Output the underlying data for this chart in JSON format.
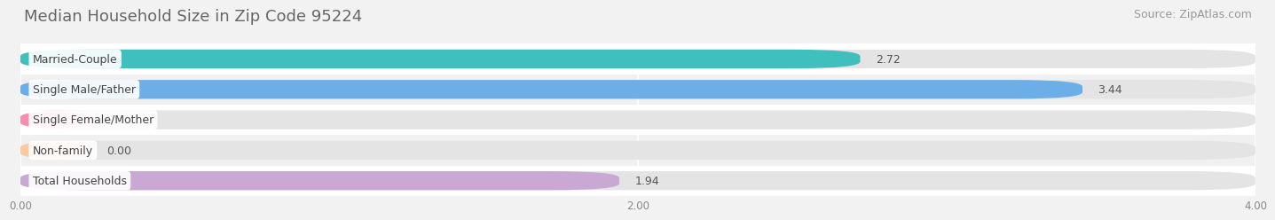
{
  "title": "Median Household Size in Zip Code 95224",
  "source": "Source: ZipAtlas.com",
  "categories": [
    "Married-Couple",
    "Single Male/Father",
    "Single Female/Mother",
    "Non-family",
    "Total Households"
  ],
  "values": [
    2.72,
    3.44,
    0.0,
    0.0,
    1.94
  ],
  "bar_colors": [
    "#40bfbf",
    "#6baee8",
    "#f48fb1",
    "#f9c9a0",
    "#c9a8d4"
  ],
  "xlim": [
    0,
    4.0
  ],
  "xticks": [
    0.0,
    2.0,
    4.0
  ],
  "xtick_labels": [
    "0.00",
    "2.00",
    "4.00"
  ],
  "title_fontsize": 13,
  "source_fontsize": 9,
  "label_fontsize": 9,
  "value_fontsize": 9,
  "background_color": "#f2f2f2",
  "bar_background_color": "#e4e4e4",
  "row_colors": [
    "#ffffff",
    "#f0f0f0"
  ],
  "bar_height": 0.62,
  "n_bars": 5
}
